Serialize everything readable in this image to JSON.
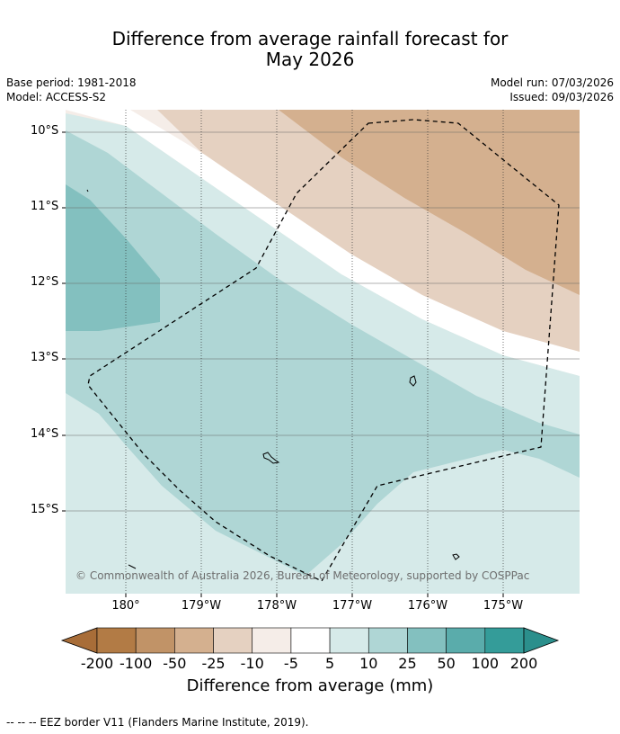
{
  "header": {
    "title_line1": "Difference from average rainfall forecast for",
    "title_line2": "May 2026",
    "base_period": "Base period: 1981-2018",
    "model": "Model: ACCESS-S2",
    "model_run": "Model run: 07/03/2026",
    "issued": "Issued: 09/03/2026"
  },
  "map": {
    "lat_labels": [
      "10°S",
      "11°S",
      "12°S",
      "13°S",
      "14°S",
      "15°S"
    ],
    "lon_labels": [
      "180°",
      "179°W",
      "178°W",
      "177°W",
      "176°W",
      "175°W"
    ],
    "copyright": "© Commonwealth of Australia 2026, Bureau of Meteorology, supported by COSPPac"
  },
  "colorbar": {
    "ticks": [
      "-200",
      "-100",
      "-50",
      "-25",
      "-10",
      "-5",
      "5",
      "10",
      "25",
      "50",
      "100",
      "200"
    ],
    "colors": [
      "#a86d38",
      "#b27b45",
      "#c19367",
      "#d4b08f",
      "#e5d1c1",
      "#f5ede8",
      "#ffffff",
      "#d6eae9",
      "#afd6d5",
      "#83c0bf",
      "#5aacab",
      "#349c99",
      "#2b8f8c"
    ],
    "title": "Difference from average (mm)"
  },
  "footer": {
    "note": "--  --  -- EEZ border V11 (Flanders Marine Institute, 2019)."
  }
}
